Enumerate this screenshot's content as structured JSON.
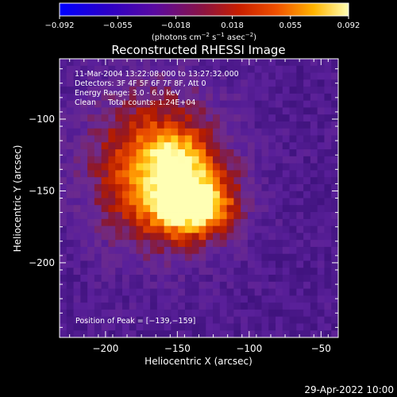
{
  "chart_data": {
    "type": "heatmap",
    "title": "Reconstructed RHESSI Image",
    "xlabel": "Heliocentric X (arcsec)",
    "ylabel": "Heliocentric Y (arcsec)",
    "xlim": [
      -232,
      -38
    ],
    "ylim": [
      -252,
      -58
    ],
    "xticks": [
      -200,
      -150,
      -100,
      -50
    ],
    "xtick_labels": [
      "−200",
      "−150",
      "−100",
      "−50"
    ],
    "yticks": [
      -100,
      -150,
      -200
    ],
    "ytick_labels": [
      "−100",
      "−150",
      "−200"
    ],
    "colorbar": {
      "min": -0.092,
      "max": 0.092,
      "ticks": [
        -0.092,
        -0.055,
        -0.018,
        0.018,
        0.055,
        0.092
      ],
      "tick_labels": [
        "−0.092",
        "−0.055",
        "−0.018",
        "0.018",
        "0.055",
        "0.092"
      ],
      "label_prefix": "(photons cm",
      "label_exp1": "−2",
      "label_mid": " s",
      "label_exp2": "−1",
      "label_mid2": " asec",
      "label_exp3": "−2",
      "label_suffix": ")"
    },
    "annotations": [
      "11-Mar-2004 13:22:08.000 to 13:27:32.000",
      "Detectors: 3F 4F 5F 6F 7F 8F, Att 0",
      "Energy Range: 3.0 - 6.0 keV",
      "Clean     Total counts: 1.24E+04"
    ],
    "peak_label": "Position of Peak = [−139,−159]",
    "peak": [
      -139,
      -159
    ],
    "grid": false
  },
  "footer": {
    "timestamp": "29-Apr-2022 10:00"
  }
}
